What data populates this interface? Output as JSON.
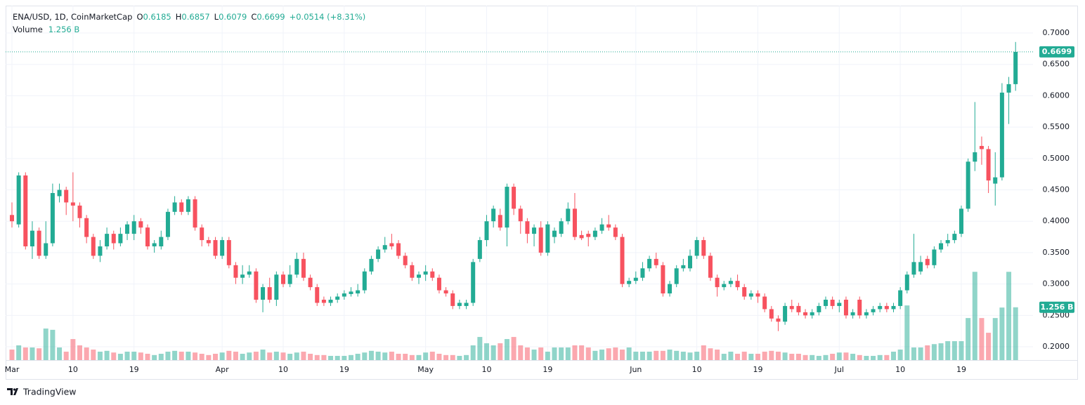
{
  "header": {
    "symbol": "ENA/USD, 1D, CoinMarketCap",
    "ohlc": [
      {
        "label": "O",
        "value": "0.6185"
      },
      {
        "label": "H",
        "value": "0.6857"
      },
      {
        "label": "L",
        "value": "0.6079"
      },
      {
        "label": "C",
        "value": "0.6699"
      }
    ],
    "change": "+0.0514 (+8.31%)",
    "volume_label": "Volume",
    "volume_value": "1.256 B"
  },
  "chart_data": {
    "type": "candlestick",
    "categories": [
      "Mar",
      null,
      null,
      null,
      null,
      null,
      null,
      null,
      null,
      "10",
      null,
      null,
      null,
      null,
      null,
      null,
      null,
      null,
      "19",
      null,
      null,
      null,
      null,
      null,
      null,
      null,
      null,
      null,
      null,
      null,
      null,
      "Apr",
      null,
      null,
      null,
      null,
      null,
      null,
      null,
      null,
      "10",
      null,
      null,
      null,
      null,
      null,
      null,
      null,
      null,
      "19",
      null,
      null,
      null,
      null,
      null,
      null,
      null,
      null,
      null,
      null,
      null,
      "May",
      null,
      null,
      null,
      null,
      null,
      null,
      null,
      null,
      "10",
      null,
      null,
      null,
      null,
      null,
      null,
      null,
      null,
      "19",
      null,
      null,
      null,
      null,
      null,
      null,
      null,
      null,
      null,
      null,
      null,
      null,
      "Jun",
      null,
      null,
      null,
      null,
      null,
      null,
      null,
      null,
      "10",
      null,
      null,
      null,
      null,
      null,
      null,
      null,
      null,
      "19",
      null,
      null,
      null,
      null,
      null,
      null,
      null,
      null,
      null,
      null,
      null,
      "Jul",
      null,
      null,
      null,
      null,
      null,
      null,
      null,
      null,
      "10",
      null,
      null,
      null,
      null,
      null,
      null,
      null,
      null,
      "19",
      null,
      null,
      null,
      null,
      null,
      null,
      null,
      null
    ],
    "series": [
      {
        "name": "ENA/USD",
        "open": [
          0.41,
          0.395,
          0.473,
          0.36,
          0.385,
          0.345,
          0.365,
          0.44,
          0.45,
          0.43,
          0.425,
          0.405,
          0.375,
          0.345,
          0.36,
          0.38,
          0.365,
          0.38,
          0.38,
          0.4,
          0.39,
          0.36,
          0.36,
          0.375,
          0.415,
          0.43,
          0.415,
          0.435,
          0.39,
          0.37,
          0.37,
          0.345,
          0.37,
          0.33,
          0.31,
          0.315,
          0.32,
          0.275,
          0.295,
          0.275,
          0.315,
          0.3,
          0.315,
          0.34,
          0.31,
          0.295,
          0.275,
          0.27,
          0.275,
          0.28,
          0.284,
          0.285,
          0.29,
          0.32,
          0.34,
          0.355,
          0.365,
          0.365,
          0.345,
          0.33,
          0.31,
          0.315,
          0.32,
          0.31,
          0.29,
          0.285,
          0.265,
          0.265,
          0.27,
          0.34,
          0.37,
          0.4,
          0.41,
          0.39,
          0.455,
          0.42,
          0.4,
          0.38,
          0.39,
          0.35,
          0.375,
          0.38,
          0.4,
          0.42,
          0.378,
          0.38,
          0.375,
          0.385,
          0.395,
          0.39,
          0.375,
          0.3,
          0.305,
          0.31,
          0.325,
          0.34,
          0.33,
          0.285,
          0.3,
          0.325,
          0.325,
          0.345,
          0.37,
          0.345,
          0.31,
          0.295,
          0.3,
          0.305,
          0.295,
          0.28,
          0.285,
          0.28,
          0.26,
          0.245,
          0.24,
          0.265,
          0.265,
          0.255,
          0.25,
          0.255,
          0.265,
          0.275,
          0.265,
          0.275,
          0.25,
          0.275,
          0.25,
          0.255,
          0.26,
          0.265,
          0.26,
          0.265,
          0.29,
          0.315,
          0.32,
          0.34,
          0.33,
          0.355,
          0.365,
          0.37,
          0.38,
          0.42,
          0.495,
          0.52,
          0.515,
          0.46,
          0.47,
          0.605,
          0.6185
        ],
        "high": [
          0.43,
          0.478,
          0.478,
          0.4,
          0.39,
          0.4,
          0.46,
          0.46,
          0.455,
          0.478,
          0.43,
          0.41,
          0.38,
          0.37,
          0.39,
          0.385,
          0.39,
          0.4,
          0.41,
          0.405,
          0.395,
          0.37,
          0.385,
          0.42,
          0.44,
          0.435,
          0.44,
          0.44,
          0.395,
          0.375,
          0.375,
          0.375,
          0.375,
          0.335,
          0.33,
          0.33,
          0.325,
          0.3,
          0.31,
          0.32,
          0.32,
          0.33,
          0.35,
          0.35,
          0.315,
          0.3,
          0.28,
          0.28,
          0.285,
          0.29,
          0.295,
          0.3,
          0.325,
          0.345,
          0.36,
          0.375,
          0.38,
          0.37,
          0.35,
          0.335,
          0.32,
          0.33,
          0.325,
          0.315,
          0.295,
          0.29,
          0.275,
          0.275,
          0.34,
          0.375,
          0.41,
          0.425,
          0.42,
          0.46,
          0.46,
          0.425,
          0.405,
          0.395,
          0.4,
          0.4,
          0.39,
          0.405,
          0.43,
          0.445,
          0.385,
          0.385,
          0.39,
          0.405,
          0.41,
          0.395,
          0.38,
          0.31,
          0.32,
          0.335,
          0.345,
          0.35,
          0.335,
          0.305,
          0.33,
          0.34,
          0.355,
          0.375,
          0.375,
          0.35,
          0.315,
          0.305,
          0.31,
          0.315,
          0.3,
          0.29,
          0.29,
          0.285,
          0.265,
          0.25,
          0.27,
          0.275,
          0.27,
          0.26,
          0.26,
          0.27,
          0.28,
          0.28,
          0.275,
          0.28,
          0.26,
          0.28,
          0.26,
          0.265,
          0.27,
          0.27,
          0.27,
          0.295,
          0.32,
          0.38,
          0.345,
          0.345,
          0.36,
          0.37,
          0.38,
          0.385,
          0.425,
          0.5,
          0.59,
          0.535,
          0.52,
          0.51,
          0.62,
          0.63,
          0.6857
        ],
        "low": [
          0.39,
          0.39,
          0.355,
          0.34,
          0.34,
          0.34,
          0.36,
          0.43,
          0.41,
          0.4,
          0.39,
          0.365,
          0.34,
          0.335,
          0.355,
          0.355,
          0.36,
          0.37,
          0.37,
          0.38,
          0.355,
          0.35,
          0.355,
          0.37,
          0.41,
          0.41,
          0.41,
          0.385,
          0.36,
          0.36,
          0.34,
          0.34,
          0.325,
          0.3,
          0.3,
          0.31,
          0.27,
          0.255,
          0.27,
          0.265,
          0.295,
          0.295,
          0.31,
          0.305,
          0.29,
          0.265,
          0.265,
          0.265,
          0.27,
          0.275,
          0.28,
          0.28,
          0.285,
          0.315,
          0.335,
          0.35,
          0.355,
          0.34,
          0.325,
          0.305,
          0.3,
          0.305,
          0.305,
          0.285,
          0.28,
          0.26,
          0.26,
          0.26,
          0.265,
          0.335,
          0.36,
          0.39,
          0.385,
          0.36,
          0.41,
          0.38,
          0.365,
          0.36,
          0.345,
          0.345,
          0.365,
          0.375,
          0.395,
          0.37,
          0.37,
          0.36,
          0.37,
          0.38,
          0.385,
          0.37,
          0.295,
          0.295,
          0.3,
          0.305,
          0.32,
          0.325,
          0.28,
          0.28,
          0.295,
          0.32,
          0.32,
          0.34,
          0.34,
          0.305,
          0.28,
          0.29,
          0.295,
          0.29,
          0.275,
          0.275,
          0.27,
          0.255,
          0.24,
          0.225,
          0.235,
          0.255,
          0.25,
          0.245,
          0.245,
          0.25,
          0.26,
          0.26,
          0.255,
          0.245,
          0.245,
          0.245,
          0.245,
          0.25,
          0.255,
          0.255,
          0.255,
          0.26,
          0.285,
          0.31,
          0.315,
          0.325,
          0.325,
          0.35,
          0.36,
          0.365,
          0.375,
          0.415,
          0.48,
          0.49,
          0.445,
          0.425,
          0.465,
          0.555,
          0.6079
        ],
        "close": [
          0.4,
          0.473,
          0.36,
          0.385,
          0.345,
          0.365,
          0.445,
          0.45,
          0.43,
          0.425,
          0.405,
          0.375,
          0.345,
          0.36,
          0.38,
          0.365,
          0.38,
          0.395,
          0.4,
          0.39,
          0.36,
          0.365,
          0.375,
          0.415,
          0.43,
          0.415,
          0.435,
          0.39,
          0.37,
          0.365,
          0.345,
          0.37,
          0.33,
          0.31,
          0.315,
          0.32,
          0.275,
          0.295,
          0.275,
          0.315,
          0.3,
          0.315,
          0.34,
          0.31,
          0.295,
          0.27,
          0.27,
          0.275,
          0.28,
          0.285,
          0.288,
          0.29,
          0.32,
          0.34,
          0.355,
          0.362,
          0.36,
          0.345,
          0.33,
          0.31,
          0.315,
          0.32,
          0.31,
          0.29,
          0.285,
          0.265,
          0.27,
          0.27,
          0.335,
          0.37,
          0.4,
          0.42,
          0.39,
          0.455,
          0.42,
          0.4,
          0.38,
          0.39,
          0.35,
          0.395,
          0.385,
          0.4,
          0.42,
          0.375,
          0.373,
          0.375,
          0.385,
          0.395,
          0.39,
          0.375,
          0.3,
          0.305,
          0.31,
          0.325,
          0.34,
          0.33,
          0.285,
          0.3,
          0.325,
          0.33,
          0.345,
          0.37,
          0.345,
          0.31,
          0.295,
          0.3,
          0.305,
          0.295,
          0.28,
          0.285,
          0.28,
          0.26,
          0.245,
          0.24,
          0.265,
          0.26,
          0.255,
          0.25,
          0.255,
          0.265,
          0.275,
          0.265,
          0.27,
          0.25,
          0.255,
          0.25,
          0.255,
          0.26,
          0.265,
          0.26,
          0.265,
          0.29,
          0.315,
          0.335,
          0.335,
          0.33,
          0.355,
          0.365,
          0.37,
          0.38,
          0.42,
          0.495,
          0.51,
          0.515,
          0.465,
          0.47,
          0.605,
          0.6185,
          0.6699
        ],
        "volume": [
          0.25,
          0.35,
          0.3,
          0.3,
          0.28,
          0.75,
          0.72,
          0.3,
          0.2,
          0.5,
          0.35,
          0.3,
          0.25,
          0.2,
          0.22,
          0.18,
          0.15,
          0.2,
          0.2,
          0.18,
          0.15,
          0.12,
          0.15,
          0.2,
          0.22,
          0.2,
          0.2,
          0.18,
          0.15,
          0.12,
          0.15,
          0.18,
          0.22,
          0.2,
          0.15,
          0.18,
          0.2,
          0.25,
          0.18,
          0.2,
          0.18,
          0.15,
          0.18,
          0.2,
          0.15,
          0.12,
          0.12,
          0.1,
          0.1,
          0.1,
          0.12,
          0.15,
          0.18,
          0.22,
          0.2,
          0.18,
          0.2,
          0.15,
          0.15,
          0.12,
          0.12,
          0.18,
          0.2,
          0.15,
          0.12,
          0.12,
          0.1,
          0.12,
          0.35,
          0.55,
          0.4,
          0.35,
          0.4,
          0.5,
          0.55,
          0.35,
          0.3,
          0.25,
          0.3,
          0.2,
          0.3,
          0.3,
          0.3,
          0.35,
          0.35,
          0.3,
          0.22,
          0.25,
          0.28,
          0.3,
          0.25,
          0.3,
          0.2,
          0.2,
          0.2,
          0.22,
          0.22,
          0.25,
          0.22,
          0.2,
          0.18,
          0.2,
          0.35,
          0.28,
          0.25,
          0.15,
          0.2,
          0.15,
          0.2,
          0.15,
          0.15,
          0.2,
          0.22,
          0.2,
          0.18,
          0.15,
          0.15,
          0.12,
          0.12,
          0.1,
          0.12,
          0.15,
          0.18,
          0.18,
          0.15,
          0.12,
          0.1,
          0.1,
          0.12,
          0.12,
          0.2,
          0.25,
          1.3,
          0.3,
          0.3,
          0.35,
          0.38,
          0.4,
          0.45,
          0.45,
          0.45,
          1.0,
          2.1,
          1.0,
          0.65,
          1.0,
          1.25,
          2.1,
          1.256
        ],
        "up_color": "#22ab94",
        "down_color": "#f7525f"
      }
    ],
    "ylim": [
      0.1788,
      0.7414
    ],
    "yticks": [
      {
        "value": 0.7,
        "label": "0.7000"
      },
      {
        "value": 0.65,
        "label": "0.6500"
      },
      {
        "value": 0.6,
        "label": "0.6000"
      },
      {
        "value": 0.55,
        "label": "0.5500"
      },
      {
        "value": 0.5,
        "label": "0.5000"
      },
      {
        "value": 0.45,
        "label": "0.4500"
      },
      {
        "value": 0.4,
        "label": "0.4000"
      },
      {
        "value": 0.35,
        "label": "0.3500"
      },
      {
        "value": 0.3,
        "label": "0.3000"
      },
      {
        "value": 0.25,
        "label": "0.2500"
      },
      {
        "value": 0.2,
        "label": "0.2000"
      }
    ],
    "y2lim": [
      0,
      8.4
    ],
    "price_tag": "0.6699",
    "volume_tag": "1.256 B",
    "grid": true
  },
  "footer": {
    "brand": "TradingView"
  }
}
